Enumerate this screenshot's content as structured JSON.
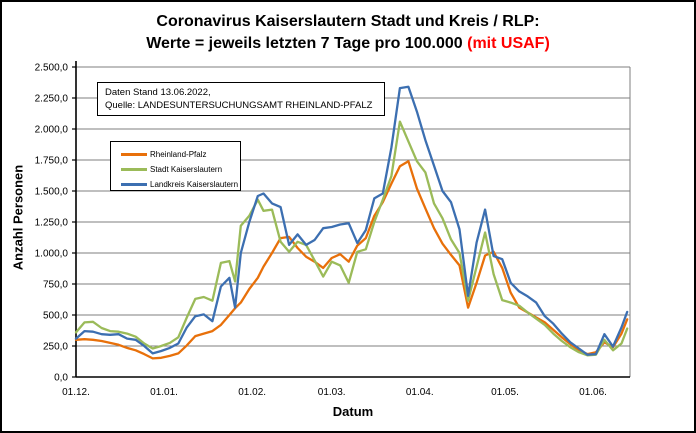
{
  "header": {
    "title_line1": "Coronavirus Kaiserslautern Stadt und Kreis / RLP:",
    "title_line2_black": "Werte = jeweils letzten 7 Tage pro 100.000 ",
    "title_line2_red": "(mit USAF)"
  },
  "info_box": {
    "line1": "Daten Stand 13.06.2022,",
    "line2": "Quelle: LANDESUNTERSUCHUNGSAMT RHEINLAND-PFALZ"
  },
  "colors": {
    "rlp_orange": "#E8700A",
    "stadt_green": "#9BBB59",
    "landkreis_blue": "#3C6FB1",
    "gridline": "#7f7f7f",
    "axis": "#000000",
    "title_accent_red": "#ff0000"
  },
  "chart_data": {
    "type": "line",
    "title": "Coronavirus Kaiserslautern Stadt und Kreis / RLP: Werte = jeweils letzten 7 Tage pro 100.000 (mit USAF)",
    "xlabel": "Datum",
    "ylabel": "Anzahl Personen",
    "ylim": [
      0,
      2500
    ],
    "y_tick_step": 250,
    "grid": true,
    "legend_position": "upper-left",
    "y_tick_labels": [
      "2.500,0",
      "2.250,0",
      "2.000,0",
      "1.750,0",
      "1.500,0",
      "1.250,0",
      "1.000,0",
      "750,0",
      "500,0",
      "250,0",
      "0,0"
    ],
    "x_ticks": [
      {
        "label": "01.12.",
        "day": 0
      },
      {
        "label": "01.01.",
        "day": 31
      },
      {
        "label": "01.02.",
        "day": 62
      },
      {
        "label": "01.03.",
        "day": 90
      },
      {
        "label": "01.04.",
        "day": 121
      },
      {
        "label": "01.05.",
        "day": 151
      },
      {
        "label": "01.06.",
        "day": 182
      }
    ],
    "x_domain_days": [
      0,
      195
    ],
    "dates": [
      "01.12",
      "04.12",
      "07.12",
      "10.12",
      "13.12",
      "16.12",
      "19.12",
      "22.12",
      "25.12",
      "28.12",
      "31.12",
      "03.01",
      "06.01",
      "09.01",
      "12.01",
      "15.01",
      "18.01",
      "21.01",
      "24.01",
      "26.01",
      "28.01",
      "31.01",
      "03.02",
      "05.02",
      "08.02",
      "11.02",
      "14.02",
      "17.02",
      "20.02",
      "23.02",
      "26.02",
      "01.03",
      "04.03",
      "07.03",
      "10.03",
      "13.03",
      "16.03",
      "19.03",
      "22.03",
      "25.03",
      "28.03",
      "31.03",
      "03.04",
      "06.04",
      "09.04",
      "12.04",
      "15.04",
      "18.04",
      "21.04",
      "24.04",
      "27.04",
      "30.04",
      "03.05",
      "06.05",
      "09.05",
      "12.05",
      "15.05",
      "18.05",
      "21.05",
      "24.05",
      "27.05",
      "30.05",
      "02.06",
      "05.06",
      "08.06",
      "11.06",
      "13.06"
    ],
    "day_offsets": [
      0,
      3,
      6,
      9,
      12,
      15,
      18,
      21,
      24,
      27,
      30,
      33,
      36,
      39,
      42,
      45,
      48,
      51,
      54,
      56,
      58,
      61,
      64,
      66,
      69,
      72,
      75,
      78,
      81,
      84,
      87,
      90,
      93,
      96,
      99,
      102,
      105,
      108,
      111,
      114,
      117,
      120,
      123,
      126,
      129,
      132,
      135,
      138,
      141,
      144,
      147,
      150,
      153,
      156,
      159,
      162,
      165,
      168,
      171,
      174,
      177,
      180,
      183,
      186,
      189,
      192,
      194
    ],
    "series": [
      {
        "name": "Rheinland-Pfalz",
        "color": "#E8700A",
        "values": [
          300,
          305,
          300,
          290,
          275,
          260,
          235,
          215,
          185,
          150,
          155,
          170,
          190,
          255,
          330,
          350,
          370,
          420,
          500,
          555,
          600,
          710,
          800,
          890,
          1000,
          1120,
          1130,
          1040,
          970,
          930,
          880,
          960,
          990,
          930,
          1060,
          1120,
          1300,
          1410,
          1560,
          1700,
          1740,
          1520,
          1360,
          1200,
          1075,
          985,
          900,
          560,
          760,
          980,
          1010,
          880,
          680,
          560,
          520,
          480,
          440,
          380,
          320,
          265,
          215,
          185,
          200,
          280,
          240,
          350,
          465
        ]
      },
      {
        "name": "Stadt Kaiserslautern",
        "color": "#9BBB59",
        "values": [
          360,
          440,
          445,
          395,
          370,
          365,
          350,
          325,
          270,
          230,
          250,
          275,
          320,
          480,
          630,
          645,
          615,
          920,
          935,
          770,
          1220,
          1300,
          1430,
          1340,
          1350,
          1090,
          1010,
          1090,
          1065,
          940,
          810,
          930,
          900,
          760,
          1010,
          1030,
          1250,
          1430,
          1620,
          2060,
          1900,
          1740,
          1650,
          1400,
          1280,
          1110,
          1000,
          615,
          890,
          1165,
          830,
          620,
          600,
          575,
          520,
          470,
          420,
          350,
          290,
          240,
          200,
          175,
          180,
          300,
          215,
          270,
          390
        ]
      },
      {
        "name": "Landkreis Kaiserslautern",
        "color": "#3C6FB1",
        "values": [
          310,
          370,
          365,
          345,
          340,
          345,
          310,
          300,
          250,
          190,
          210,
          235,
          270,
          400,
          490,
          505,
          450,
          730,
          800,
          560,
          1000,
          1250,
          1460,
          1480,
          1400,
          1370,
          1065,
          1150,
          1065,
          1105,
          1200,
          1210,
          1230,
          1240,
          1080,
          1185,
          1440,
          1480,
          1850,
          2330,
          2340,
          2140,
          1910,
          1705,
          1500,
          1410,
          1190,
          655,
          1085,
          1350,
          975,
          950,
          760,
          690,
          650,
          600,
          490,
          430,
          350,
          280,
          230,
          180,
          185,
          345,
          245,
          400,
          525
        ]
      }
    ]
  },
  "legend": {
    "items": [
      {
        "label": "Rheinland-Pfalz"
      },
      {
        "label": "Stadt Kaiserslautern"
      },
      {
        "label": "Landkreis Kaiserslautern"
      }
    ]
  }
}
